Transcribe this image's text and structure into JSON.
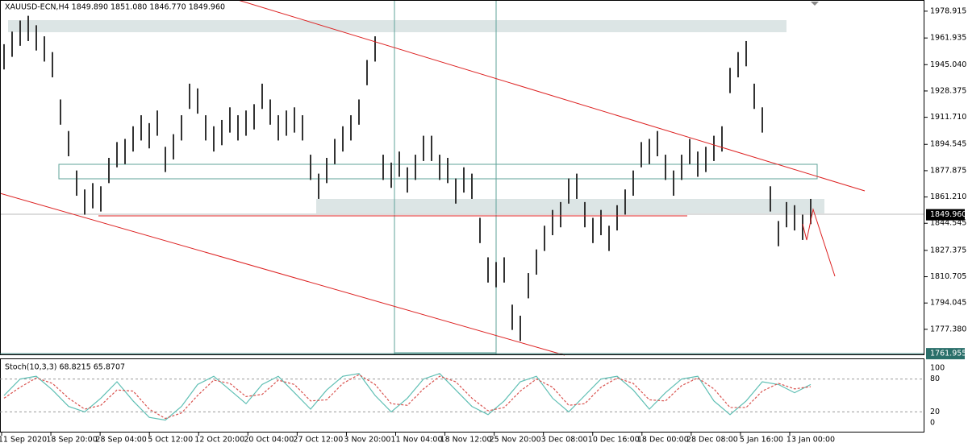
{
  "chart_data": {
    "type": "ohlc-bars",
    "title": "XAUUSD-ECN,H4  1849.890 1851.080 1846.770 1849.960",
    "high": [
      1958,
      1966,
      1973,
      1976,
      1970,
      1963,
      1953,
      1923,
      1903,
      1878,
      1866,
      1870,
      1868,
      1886,
      1896,
      1898,
      1906,
      1913,
      1908,
      1916,
      1893,
      1901,
      1913,
      1933,
      1930,
      1913,
      1906,
      1910,
      1918,
      1913,
      1916,
      1920,
      1933,
      1923,
      1913,
      1916,
      1918,
      1913,
      1888,
      1876,
      1886,
      1898,
      1906,
      1913,
      1923,
      1948,
      1963,
      1888,
      1883,
      1890,
      1880,
      1888,
      1900,
      1900,
      1888,
      1886,
      1873,
      1880,
      1876,
      1848,
      1823,
      1820,
      1823,
      1793,
      1786,
      1813,
      1828,
      1843,
      1853,
      1858,
      1873,
      1876,
      1858,
      1848,
      1853,
      1843,
      1856,
      1866,
      1878,
      1896,
      1898,
      1903,
      1888,
      1878,
      1888,
      1898,
      1890,
      1893,
      1900,
      1906,
      1943,
      1953,
      1960,
      1933,
      1918,
      1868,
      1846,
      1858,
      1856,
      1850,
      1860
    ],
    "low": [
      1942,
      1950,
      1957,
      1960,
      1954,
      1947,
      1937,
      1907,
      1887,
      1862,
      1850,
      1854,
      1852,
      1870,
      1880,
      1882,
      1890,
      1897,
      1892,
      1900,
      1877,
      1885,
      1897,
      1917,
      1914,
      1897,
      1890,
      1894,
      1902,
      1897,
      1900,
      1904,
      1917,
      1907,
      1897,
      1900,
      1902,
      1897,
      1872,
      1860,
      1870,
      1882,
      1890,
      1897,
      1907,
      1932,
      1947,
      1872,
      1867,
      1874,
      1864,
      1872,
      1884,
      1884,
      1872,
      1870,
      1857,
      1864,
      1860,
      1832,
      1807,
      1804,
      1807,
      1777,
      1770,
      1797,
      1812,
      1827,
      1837,
      1842,
      1857,
      1860,
      1842,
      1832,
      1837,
      1827,
      1840,
      1850,
      1862,
      1880,
      1882,
      1887,
      1872,
      1862,
      1872,
      1882,
      1874,
      1877,
      1884,
      1890,
      1927,
      1937,
      1944,
      1917,
      1902,
      1852,
      1830,
      1842,
      1840,
      1834,
      1844
    ],
    "color": "#333333",
    "ylim": [
      1761.5,
      1986
    ],
    "yticks": [
      1978.915,
      1961.935,
      {
        "value": 1945.04,
        "label": "1945.040"
      },
      1928.375,
      {
        "value": 1911.71,
        "label": "1911.710"
      },
      1894.545,
      1877.875,
      {
        "value": 1861.21,
        "label": "1861.210"
      },
      1844.545,
      1827.375,
      1810.705,
      1794.045,
      {
        "value": 1777.38,
        "label": "1777.380"
      }
    ],
    "current_price": {
      "value": 1849.96,
      "label": "1849.960"
    },
    "low_marker": 1761.955,
    "x_labels": [
      "11 Sep 2020",
      "18 Sep 20:00",
      "28 Sep 04:00",
      "5 Oct 12:00",
      "12 Oct 20:00",
      "20 Oct 04:00",
      "27 Oct 12:00",
      "3 Nov 20:00",
      "11 Nov 04:00",
      "18 Nov 12:00",
      "25 Nov 20:00",
      "3 Dec 08:00",
      "10 Dec 16:00",
      "18 Dec 00:00",
      "28 Dec 08:00",
      "5 Jan 16:00",
      "13 Jan 00:00"
    ],
    "indicator": {
      "title": "Stoch(10,3,3) 68.8215 65.8707",
      "ylim": [
        0,
        100
      ],
      "yticks": [
        100,
        80,
        20,
        0
      ],
      "series": [
        {
          "color": "#5fbfb4",
          "values": [
            50,
            80,
            85,
            60,
            30,
            20,
            45,
            75,
            40,
            10,
            5,
            30,
            70,
            85,
            60,
            35,
            70,
            85,
            55,
            25,
            60,
            85,
            90,
            50,
            20,
            45,
            80,
            90,
            60,
            30,
            15,
            40,
            75,
            85,
            45,
            20,
            50,
            80,
            85,
            60,
            25,
            55,
            80,
            85,
            40,
            15,
            40,
            75,
            70,
            55,
            70
          ]
        },
        {
          "color": "#d9534f",
          "values": [
            45,
            65,
            82,
            72,
            45,
            25,
            32,
            60,
            58,
            25,
            8,
            18,
            50,
            78,
            72,
            48,
            52,
            78,
            70,
            40,
            42,
            72,
            88,
            70,
            35,
            32,
            62,
            85,
            75,
            45,
            22,
            28,
            58,
            80,
            65,
            32,
            35,
            65,
            82,
            72,
            42,
            40,
            68,
            82,
            62,
            28,
            28,
            58,
            72,
            62,
            66
          ]
        }
      ]
    }
  }
}
